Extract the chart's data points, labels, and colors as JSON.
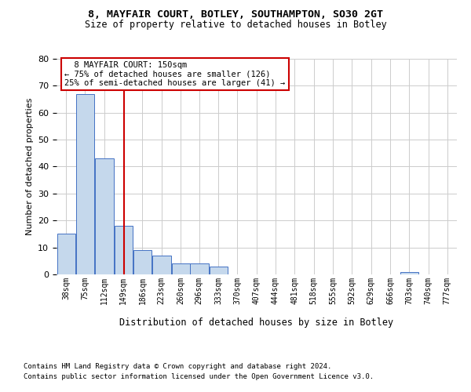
{
  "title1": "8, MAYFAIR COURT, BOTLEY, SOUTHAMPTON, SO30 2GT",
  "title2": "Size of property relative to detached houses in Botley",
  "xlabel": "Distribution of detached houses by size in Botley",
  "ylabel": "Number of detached properties",
  "footer1": "Contains HM Land Registry data © Crown copyright and database right 2024.",
  "footer2": "Contains public sector information licensed under the Open Government Licence v3.0.",
  "annotation_line1": "  8 MAYFAIR COURT: 150sqm  ",
  "annotation_line2": "← 75% of detached houses are smaller (126)",
  "annotation_line3": "25% of semi-detached houses are larger (41) →",
  "bins": [
    38,
    75,
    112,
    149,
    186,
    223,
    260,
    296,
    333,
    370,
    407,
    444,
    481,
    518,
    555,
    592,
    629,
    666,
    703,
    740,
    777
  ],
  "counts": [
    15,
    67,
    43,
    18,
    9,
    7,
    4,
    4,
    3,
    0,
    0,
    0,
    0,
    0,
    0,
    0,
    0,
    0,
    1,
    0
  ],
  "property_size": 150,
  "bar_color": "#c5d8ec",
  "bar_edge_color": "#4472c4",
  "marker_color": "#cc0000",
  "ylim": [
    0,
    80
  ],
  "yticks": [
    0,
    10,
    20,
    30,
    40,
    50,
    60,
    70,
    80
  ],
  "annotation_box_color": "#cc0000",
  "bg_color": "#ffffff",
  "grid_color": "#cccccc"
}
